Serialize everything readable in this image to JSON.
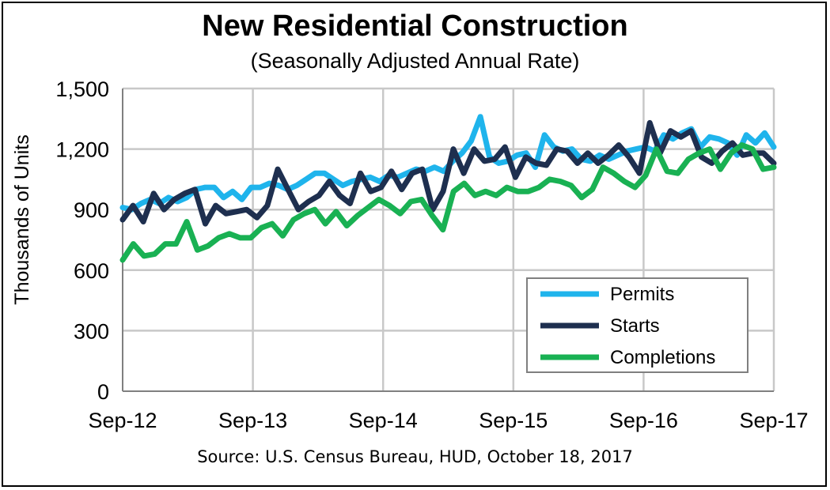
{
  "header": {
    "title": "New Residential Construction",
    "subtitle": "(Seasonally Adjusted Annual Rate)"
  },
  "footer": {
    "source": "Source:  U.S. Census Bureau, HUD, October 18, 2017"
  },
  "chart_data": {
    "type": "line",
    "title": "New Residential Construction",
    "subtitle": "(Seasonally Adjusted Annual Rate)",
    "ylabel": "Thousands of Units",
    "xlabel": "",
    "ylim": [
      0,
      1500
    ],
    "yticks": [
      0,
      300,
      600,
      900,
      1200,
      1500
    ],
    "ytick_labels": [
      "0",
      "300",
      "600",
      "900",
      "1,200",
      "1,500"
    ],
    "xtick_labels": [
      "Sep-12",
      "Sep-13",
      "Sep-14",
      "Sep-15",
      "Sep-16",
      "Sep-17"
    ],
    "x_start": "Sep-12",
    "x_end": "Sep-17",
    "grid": true,
    "legend_position": "bottom-right",
    "series": [
      {
        "name": "Permits",
        "color": "#1fb4ec",
        "values": [
          910,
          900,
          930,
          950,
          930,
          960,
          940,
          960,
          1000,
          1010,
          1010,
          960,
          990,
          950,
          1010,
          1010,
          1030,
          1020,
          1000,
          1020,
          1050,
          1080,
          1080,
          1050,
          1020,
          1040,
          1050,
          1060,
          1040,
          1070,
          1060,
          1080,
          1100,
          1090,
          1110,
          1090,
          1140,
          1180,
          1240,
          1360,
          1160,
          1130,
          1140,
          1170,
          1180,
          1110,
          1270,
          1210,
          1190,
          1200,
          1150,
          1140,
          1170,
          1150,
          1170,
          1190,
          1200,
          1210,
          1190,
          1270,
          1250,
          1280,
          1300,
          1210,
          1260,
          1250,
          1230,
          1170,
          1270,
          1230,
          1280,
          1210
        ]
      },
      {
        "name": "Starts",
        "color": "#1e2f4f",
        "values": [
          850,
          920,
          840,
          980,
          900,
          950,
          980,
          1000,
          830,
          920,
          880,
          890,
          900,
          860,
          920,
          1100,
          1000,
          900,
          940,
          970,
          1040,
          970,
          930,
          1080,
          990,
          1010,
          1090,
          1000,
          1080,
          1100,
          900,
          990,
          1200,
          1080,
          1200,
          1140,
          1150,
          1210,
          1060,
          1160,
          1130,
          1120,
          1200,
          1190,
          1130,
          1180,
          1130,
          1170,
          1220,
          1160,
          1080,
          1330,
          1180,
          1290,
          1260,
          1290,
          1160,
          1130,
          1190,
          1230,
          1170,
          1180,
          1180,
          1130
        ]
      },
      {
        "name": "Completions",
        "color": "#19b153",
        "values": [
          650,
          730,
          670,
          680,
          730,
          730,
          840,
          700,
          720,
          760,
          780,
          760,
          760,
          810,
          830,
          770,
          850,
          880,
          900,
          830,
          890,
          820,
          870,
          910,
          950,
          920,
          880,
          940,
          950,
          870,
          800,
          990,
          1030,
          970,
          990,
          970,
          1010,
          990,
          990,
          1010,
          1050,
          1040,
          1020,
          960,
          1000,
          1110,
          1080,
          1040,
          1010,
          1070,
          1200,
          1090,
          1080,
          1150,
          1180,
          1200,
          1100,
          1180,
          1220,
          1200,
          1100,
          1110
        ]
      }
    ]
  }
}
